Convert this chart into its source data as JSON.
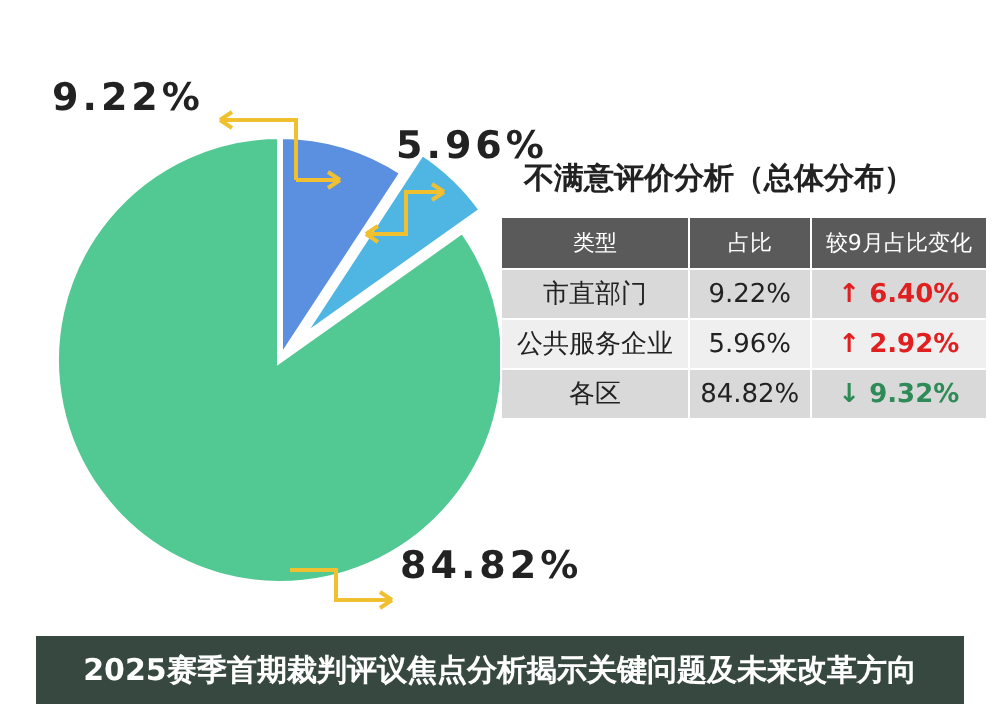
{
  "chart_data": {
    "type": "pie",
    "title": "2025赛季首期裁判评议焦点分析揭示关键问题及未来改革方向",
    "categories": [
      null,
      null,
      null
    ],
    "values": [
      9.22,
      5.96,
      84.82
    ],
    "colors": [
      "#5b8fe0",
      "#4fb6e3",
      "#52c993"
    ],
    "value_labels": [
      "9.22%",
      "5.96%",
      "84.82%"
    ],
    "annotations": [
      "不满意评价分析（总体分布）",
      "类型",
      "占比",
      "较9月占比变化",
      "市直部门",
      "公共服务企业",
      "各区",
      "↑ 6.40%",
      "↑ 2.92%",
      "↓ 9.32%"
    ]
  }
}
